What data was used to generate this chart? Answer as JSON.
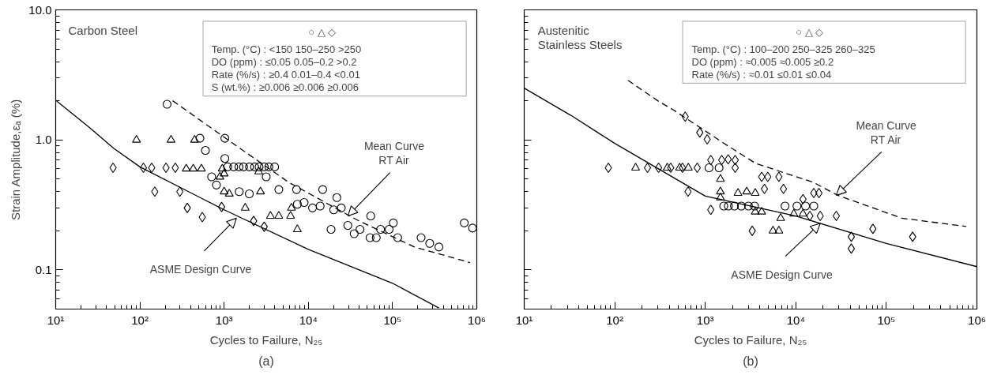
{
  "chart_data": [
    {
      "type": "scatter",
      "title": "(a)",
      "xlabel": "Cycles to Failure, N₂₅",
      "ylabel": "Strain Amplitude,εₐ (%)",
      "log": "xy",
      "xlim": [
        10,
        1000000
      ],
      "ylim": [
        0.05,
        10
      ],
      "xticks": [
        {
          "value": 10,
          "label": "10¹"
        },
        {
          "value": 100,
          "label": "10²"
        },
        {
          "value": 1000,
          "label": "10³"
        },
        {
          "value": 10000,
          "label": "10⁴"
        },
        {
          "value": 100000,
          "label": "10⁵"
        },
        {
          "value": 1000000,
          "label": "10⁶"
        }
      ],
      "yticks": [
        0.1,
        {
          "value": 1,
          "label": "1.0"
        },
        {
          "value": 10,
          "label": "10.0"
        }
      ],
      "annotations": [
        "Carbon Steel",
        "○                    △                    ◇",
        "Temp. (°C) : <150       150–250   >250",
        "DO (ppm)    : ≤0.05     0.05–0.2   >0.2",
        "Rate (%/s)  : ≥0.4       0.01–0.4   <0.01",
        "S (wt.%)     : ≥0.006  ≥0.006     ≥0.006",
        {
          "text": "ASME Design Curve",
          "x": 1400,
          "y": 0.25
        },
        {
          "text": "Mean Curve\nRT Air",
          "x": 29500,
          "y": 0.26
        }
      ],
      "series": [
        {
          "marker": "circle",
          "color": "#000000",
          "x": [
            210,
            516,
            600,
            1020,
            1020,
            710,
            810,
            1510,
            1990,
            1100,
            1300,
            1500,
            1700,
            2000,
            2300,
            2600,
            3000,
            3400,
            3980,
            3160,
            4460,
            7240,
            14800,
            7400,
            8900,
            11200,
            13800,
            18600,
            21800,
            24600,
            20000,
            29400,
            35000,
            41000,
            55000,
            54000,
            64000,
            72000,
            91000,
            102000,
            115000,
            218000,
            276000,
            355000,
            710000,
            890000
          ],
          "values": [
            1.88,
            1.03,
            0.83,
            1.03,
            0.72,
            0.52,
            0.45,
            0.4,
            0.385,
            0.62,
            0.62,
            0.62,
            0.62,
            0.62,
            0.62,
            0.62,
            0.62,
            0.62,
            0.62,
            0.52,
            0.415,
            0.415,
            0.415,
            0.32,
            0.33,
            0.3,
            0.31,
            0.205,
            0.36,
            0.3,
            0.29,
            0.22,
            0.19,
            0.205,
            0.26,
            0.177,
            0.177,
            0.205,
            0.205,
            0.23,
            0.177,
            0.177,
            0.16,
            0.15,
            0.23,
            0.21
          ]
        },
        {
          "marker": "triangle",
          "color": "#000000",
          "x": [
            91,
            234,
            446,
            355,
            430,
            537,
            890,
            1000,
            1150,
            1780,
            2570,
            2700,
            3550,
            4460,
            6150,
            7400,
            6300,
            950,
            1000
          ],
          "values": [
            1.0,
            1.0,
            1.0,
            0.6,
            0.6,
            0.6,
            0.52,
            0.4,
            0.385,
            0.3,
            0.57,
            0.4,
            0.26,
            0.26,
            0.26,
            0.205,
            0.3,
            0.6,
            0.55
          ]
        },
        {
          "marker": "diamond",
          "color": "#000000",
          "x": [
            48,
            110,
            138,
            150,
            204,
            263,
            298,
            365,
            550,
            933,
            2240,
            2990
          ],
          "values": [
            0.61,
            0.61,
            0.61,
            0.4,
            0.61,
            0.61,
            0.4,
            0.3,
            0.255,
            0.305,
            0.238,
            0.215
          ]
        },
        {
          "type": "line",
          "line_style": "solid",
          "marker": "none",
          "color": "#000000",
          "x": [
            10,
            25,
            49,
            100,
            1000,
            10000,
            100000,
            355000
          ],
          "values": [
            2.02,
            1.25,
            0.86,
            0.62,
            0.29,
            0.144,
            0.079,
            0.051
          ]
        },
        {
          "type": "line",
          "line_style": "dashed",
          "marker": "none",
          "color": "#000000",
          "x": [
            245,
            1400,
            5900,
            39000,
            182000,
            830000
          ],
          "values": [
            2.0,
            0.9,
            0.47,
            0.24,
            0.15,
            0.114
          ]
        }
      ]
    },
    {
      "type": "scatter",
      "title": "(b)",
      "xlabel": "Cycles to Failure, N₂₅",
      "log": "xy",
      "tick_labels": "x",
      "xlim": [
        10,
        1000000
      ],
      "ylim": [
        0.05,
        10
      ],
      "xticks": [
        {
          "value": 10,
          "label": "10¹"
        },
        {
          "value": 100,
          "label": "10²"
        },
        {
          "value": 1000,
          "label": "10³"
        },
        {
          "value": 10000,
          "label": "10⁴"
        },
        {
          "value": 100000,
          "label": "10⁵"
        },
        {
          "value": 1000000,
          "label": "10⁶"
        }
      ],
      "yticks": [
        {
          "value": 0.1,
          "label": null
        },
        {
          "value": 1,
          "label": null
        },
        {
          "value": 10,
          "label": null
        }
      ],
      "annotations": [
        "Austenitic\nStainless Steels",
        "○                   △                   ◇",
        "Temp. (°C) : 100–200  250–325  260–325",
        "DO (ppm)    : ≈0.005     ≈0.005     ≥0.2",
        "Rate (%/s)  : ≈0.01       ≤0.01       ≤0.04",
        {
          "text": "ASME Design Curve",
          "x": 18600,
          "y": 0.228
        },
        {
          "text": "Mean Curve\nRT Air",
          "x": 28000,
          "y": 0.375
        }
      ],
      "series": [
        {
          "marker": "circle",
          "color": "#000000",
          "x": [
            1100,
            1420,
            1600,
            1800,
            2100,
            2500,
            3000,
            3500,
            7600,
            10300,
            12800,
            15800
          ],
          "values": [
            0.61,
            0.61,
            0.31,
            0.31,
            0.31,
            0.31,
            0.31,
            0.31,
            0.31,
            0.31,
            0.31,
            0.31
          ]
        },
        {
          "marker": "triangle",
          "color": "#000000",
          "x": [
            170,
            380,
            520,
            650,
            1470,
            1470,
            1470,
            2300,
            2870,
            3560,
            3560,
            4200,
            5600,
            6500,
            6800,
            9500,
            12000
          ],
          "values": [
            0.61,
            0.61,
            0.61,
            0.61,
            0.5,
            0.4,
            0.36,
            0.39,
            0.4,
            0.39,
            0.28,
            0.28,
            0.2,
            0.2,
            0.25,
            0.27,
            0.27
          ]
        },
        {
          "marker": "diamond",
          "color": "#000000",
          "x": [
            85,
            230,
            305,
            415,
            560,
            815,
            600,
            870,
            1050,
            645,
            1150,
            1150,
            1520,
            1790,
            2140,
            2140,
            4200,
            4900,
            6500,
            7300,
            4500,
            3300,
            12000,
            15800,
            18000,
            14300,
            18600,
            28000,
            41000,
            41000,
            71000,
            195000
          ],
          "values": [
            0.61,
            0.61,
            0.61,
            0.61,
            0.61,
            0.61,
            1.51,
            1.14,
            1.01,
            0.4,
            0.29,
            0.7,
            0.7,
            0.71,
            0.7,
            0.61,
            0.52,
            0.52,
            0.52,
            0.42,
            0.42,
            0.2,
            0.35,
            0.39,
            0.39,
            0.26,
            0.26,
            0.26,
            0.18,
            0.146,
            0.207,
            0.18
          ]
        },
        {
          "type": "line",
          "line_style": "solid",
          "marker": "none",
          "color": "#000000",
          "x": [
            10,
            33,
            100,
            1000,
            10000,
            100000,
            1000000
          ],
          "values": [
            2.5,
            1.54,
            0.94,
            0.37,
            0.26,
            0.16,
            0.106
          ]
        },
        {
          "type": "line",
          "line_style": "dashed",
          "marker": "none",
          "color": "#000000",
          "x": [
            140,
            305,
            445,
            1820,
            3600,
            15800,
            29000,
            148000,
            760000
          ],
          "values": [
            2.87,
            1.98,
            1.7,
            0.89,
            0.66,
            0.47,
            0.375,
            0.25,
            0.216
          ]
        }
      ]
    }
  ]
}
